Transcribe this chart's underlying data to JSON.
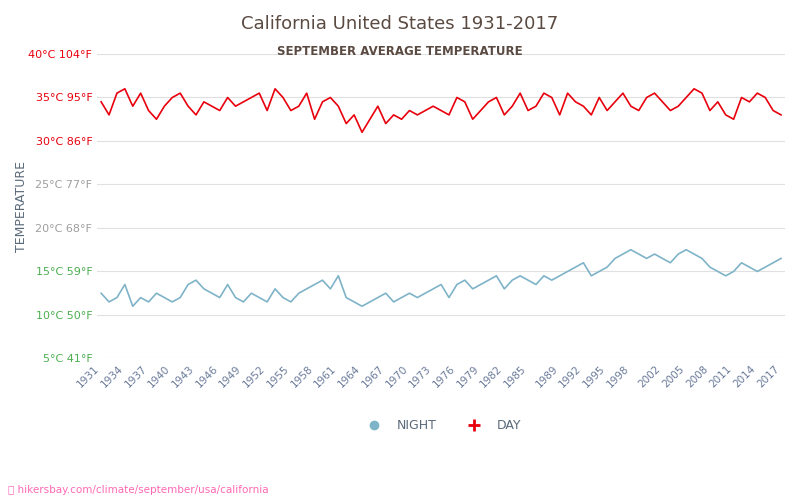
{
  "title": "California United States 1931-2017",
  "subtitle": "SEPTEMBER AVERAGE TEMPERATURE",
  "ylabel": "TEMPERATURE",
  "footer": "hikersbay.com/climate/september/usa/california",
  "years": [
    1931,
    1932,
    1933,
    1934,
    1935,
    1936,
    1937,
    1938,
    1939,
    1940,
    1941,
    1942,
    1943,
    1944,
    1945,
    1946,
    1947,
    1948,
    1949,
    1950,
    1951,
    1952,
    1953,
    1954,
    1955,
    1956,
    1957,
    1958,
    1959,
    1960,
    1961,
    1962,
    1963,
    1964,
    1965,
    1966,
    1967,
    1968,
    1969,
    1970,
    1971,
    1972,
    1973,
    1974,
    1975,
    1976,
    1977,
    1978,
    1979,
    1980,
    1981,
    1982,
    1983,
    1984,
    1985,
    1986,
    1987,
    1988,
    1989,
    1990,
    1991,
    1992,
    1993,
    1994,
    1995,
    1996,
    1997,
    1998,
    1999,
    2000,
    2001,
    2002,
    2003,
    2004,
    2005,
    2006,
    2007,
    2008,
    2009,
    2010,
    2011,
    2012,
    2013,
    2014,
    2015,
    2016,
    2017
  ],
  "day_temps": [
    34.5,
    33.0,
    35.5,
    36.0,
    34.0,
    35.5,
    33.5,
    32.5,
    34.0,
    35.0,
    35.5,
    34.0,
    33.0,
    34.5,
    34.0,
    33.5,
    35.0,
    34.0,
    34.5,
    35.0,
    35.5,
    33.5,
    36.0,
    35.0,
    33.5,
    34.0,
    35.5,
    32.5,
    34.5,
    35.0,
    34.0,
    32.0,
    33.0,
    31.0,
    32.5,
    34.0,
    32.0,
    33.0,
    32.5,
    33.5,
    33.0,
    33.5,
    34.0,
    33.5,
    33.0,
    35.0,
    34.5,
    32.5,
    33.5,
    34.5,
    35.0,
    33.0,
    34.0,
    35.5,
    33.5,
    34.0,
    35.5,
    35.0,
    33.0,
    35.5,
    34.5,
    34.0,
    33.0,
    35.0,
    33.5,
    34.5,
    35.5,
    34.0,
    33.5,
    35.0,
    35.5,
    34.5,
    33.5,
    34.0,
    35.0,
    36.0,
    35.5,
    33.5,
    34.5,
    33.0,
    32.5,
    35.0,
    34.5,
    35.5,
    35.0,
    33.5,
    33.0
  ],
  "night_temps": [
    12.5,
    11.5,
    12.0,
    13.5,
    11.0,
    12.0,
    11.5,
    12.5,
    12.0,
    11.5,
    12.0,
    13.5,
    14.0,
    13.0,
    12.5,
    12.0,
    13.5,
    12.0,
    11.5,
    12.5,
    12.0,
    11.5,
    13.0,
    12.0,
    11.5,
    12.5,
    13.0,
    13.5,
    14.0,
    13.0,
    14.5,
    12.0,
    11.5,
    11.0,
    11.5,
    12.0,
    12.5,
    11.5,
    12.0,
    12.5,
    12.0,
    12.5,
    13.0,
    13.5,
    12.0,
    13.5,
    14.0,
    13.0,
    13.5,
    14.0,
    14.5,
    13.0,
    14.0,
    14.5,
    14.0,
    13.5,
    14.5,
    14.0,
    14.5,
    15.0,
    15.5,
    16.0,
    14.5,
    15.0,
    15.5,
    16.5,
    17.0,
    17.5,
    17.0,
    16.5,
    17.0,
    16.5,
    16.0,
    17.0,
    17.5,
    17.0,
    16.5,
    15.5,
    15.0,
    14.5,
    15.0,
    16.0,
    15.5,
    15.0,
    15.5,
    16.0,
    16.5
  ],
  "yticks_celsius": [
    5,
    10,
    15,
    20,
    25,
    30,
    35,
    40
  ],
  "yticks_fahrenheit": [
    41,
    50,
    59,
    68,
    77,
    86,
    95,
    104
  ],
  "ymin": 5,
  "ymax": 40,
  "xtick_years": [
    1931,
    1934,
    1937,
    1940,
    1943,
    1946,
    1949,
    1952,
    1955,
    1958,
    1961,
    1964,
    1967,
    1970,
    1973,
    1976,
    1979,
    1982,
    1985,
    1989,
    1992,
    1995,
    1998,
    2002,
    2005,
    2008,
    2011,
    2014,
    2017
  ],
  "day_color": "#e8000d",
  "night_color": "#7fb3c8",
  "title_color": "#5a4a42",
  "subtitle_color": "#5a4a42",
  "high_tick_color": "#e8000d",
  "low_tick_color": "#4caf50",
  "mid_tick_color": "#9e9e9e",
  "footer_color": "#ff69b4",
  "grid_color": "#e0e0e0",
  "bg_color": "#ffffff"
}
